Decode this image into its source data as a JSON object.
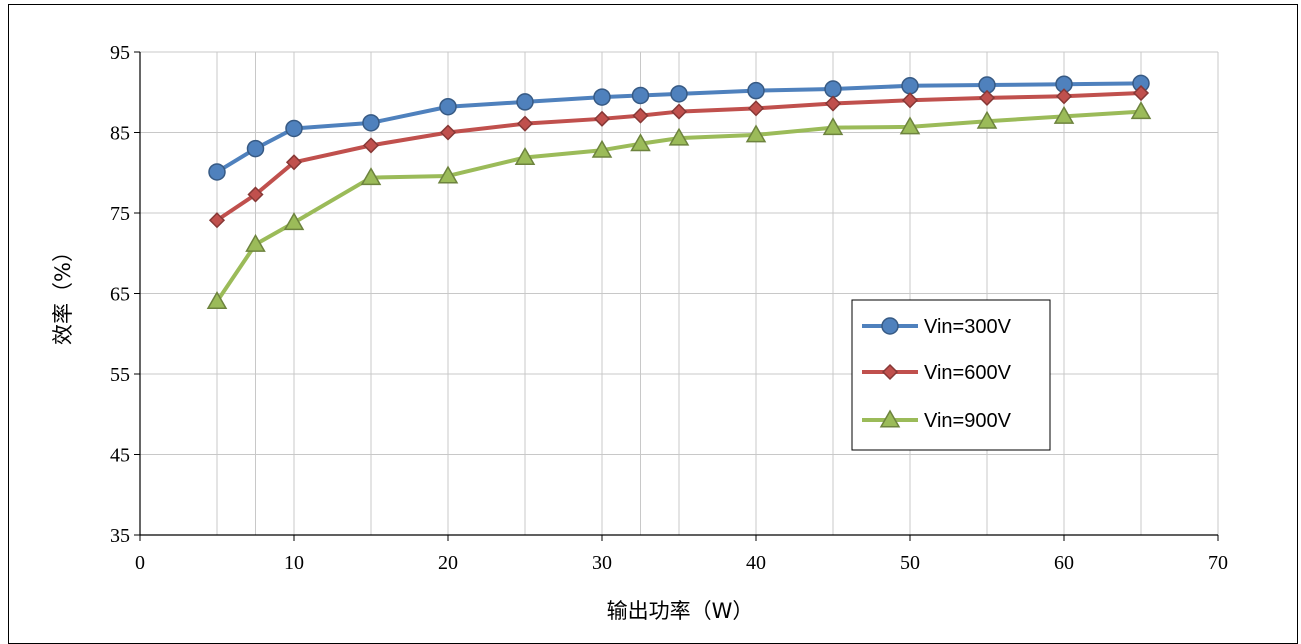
{
  "chart_data": {
    "type": "line",
    "title": "",
    "xlabel": "输出功率（W）",
    "ylabel": "效率（%）",
    "xlim": [
      0,
      70
    ],
    "ylim": [
      35,
      95
    ],
    "x_ticks": [
      "0",
      "10",
      "20",
      "30",
      "40",
      "50",
      "60",
      "70"
    ],
    "y_ticks": [
      "35",
      "45",
      "55",
      "65",
      "75",
      "85",
      "95"
    ],
    "x_tick_values": [
      0,
      10,
      20,
      30,
      40,
      50,
      60,
      70
    ],
    "y_tick_values": [
      35,
      45,
      55,
      65,
      75,
      85,
      95
    ],
    "grid": true,
    "legend_position": "center-right",
    "x": [
      5,
      7.5,
      10,
      15,
      20,
      25,
      30,
      32.5,
      35,
      40,
      45,
      50,
      55,
      60,
      65
    ],
    "series": [
      {
        "name": "Vin=300V",
        "color": "#4F81BD",
        "marker": "circle",
        "values": [
          80.1,
          83.0,
          85.5,
          86.2,
          88.2,
          88.8,
          89.4,
          89.6,
          89.8,
          90.2,
          90.4,
          90.8,
          90.9,
          91.0,
          91.1
        ]
      },
      {
        "name": "Vin=600V",
        "color": "#C0504D",
        "marker": "diamond",
        "values": [
          74.1,
          77.3,
          81.3,
          83.4,
          85.0,
          86.1,
          86.7,
          87.1,
          87.6,
          88.0,
          88.6,
          89.0,
          89.3,
          89.5,
          89.9
        ]
      },
      {
        "name": "Vin=900V",
        "color": "#9BBB59",
        "marker": "triangle",
        "values": [
          64.0,
          71.1,
          73.8,
          79.4,
          79.6,
          81.9,
          82.8,
          83.6,
          84.3,
          84.7,
          85.6,
          85.7,
          86.4,
          87.0,
          87.6
        ]
      }
    ]
  }
}
